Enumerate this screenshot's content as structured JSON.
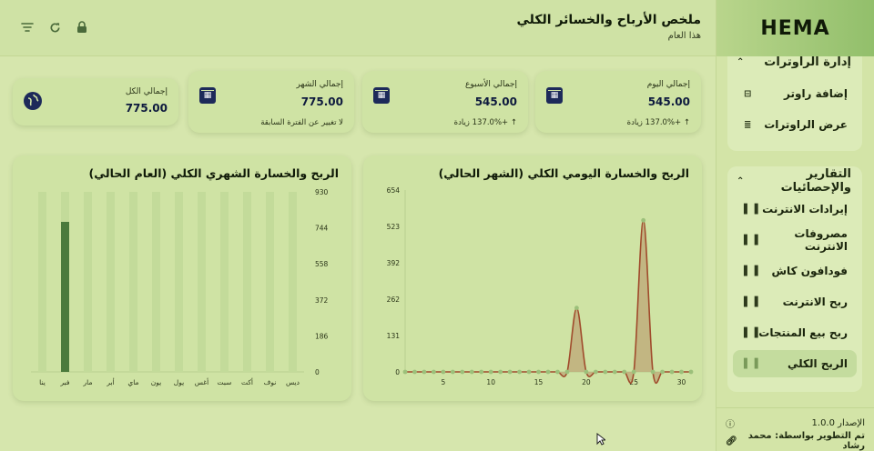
{
  "brand": "HEMA",
  "header": {
    "title": "ملخص الأرباح والخسائر الكلي",
    "subtitle": "هذا العام"
  },
  "stats": {
    "today": {
      "label": "إجمالي اليوم",
      "value": "545.00",
      "trend": "↑ +137.0% زيادة"
    },
    "week": {
      "label": "إجمالي الأسبوع",
      "value": "545.00",
      "trend": "↑ +137.0% زيادة"
    },
    "month": {
      "label": "إجمالي الشهر",
      "value": "775.00",
      "trend": "لا تغيير عن الفترة السابقة"
    },
    "total": {
      "label": "إجمالي الكل",
      "value": "775.00"
    }
  },
  "sidebar": {
    "routers_group": "إدارة الراوترات",
    "routers_items": [
      "إضافة راوتر",
      "عرض الراوترات"
    ],
    "reports_group": "التقارير والإحصائيات",
    "reports_items": [
      "إيرادات الانترنت",
      "مصروفات الانترنت",
      "فودافون كاش",
      "ربح الانترنت",
      "ربح بيع المنتجات",
      "الربح الكلي"
    ],
    "version": "الإصدار 1.0.0",
    "developer": "تم التطوير بواسطة: محمد رشاد"
  },
  "colors": {
    "accent": "#4a7a3c",
    "line": "#a04b2c",
    "area_fill": "#bfae7c",
    "bar_bg": "#c3db9a",
    "icon_navy": "#1d2a5a"
  },
  "chart_data": [
    {
      "type": "area",
      "title": "الربح والخسارة اليومي الكلي (الشهر الحالي)",
      "y_ticks": [
        0,
        131,
        262,
        392,
        523,
        654
      ],
      "x_ticks": [
        5,
        10,
        15,
        20,
        25,
        30
      ],
      "ylim": [
        0,
        654
      ],
      "xlim": [
        1,
        31
      ],
      "x": [
        1,
        2,
        3,
        4,
        5,
        6,
        7,
        8,
        9,
        10,
        11,
        12,
        13,
        14,
        15,
        16,
        17,
        18,
        19,
        20,
        21,
        22,
        23,
        24,
        25,
        26,
        27,
        28,
        29,
        30,
        31
      ],
      "values": [
        0,
        0,
        0,
        0,
        0,
        0,
        0,
        0,
        0,
        0,
        0,
        0,
        0,
        0,
        0,
        0,
        0,
        0,
        230,
        0,
        0,
        0,
        0,
        0,
        0,
        545,
        0,
        0,
        0,
        0,
        0
      ]
    },
    {
      "type": "bar",
      "title": "الربح والخسارة الشهري الكلي (العام الحالي)",
      "categories": [
        "ينا",
        "فبر",
        "مار",
        "أبر",
        "ماي",
        "يون",
        "يول",
        "أغس",
        "سبت",
        "أكت",
        "نوف",
        "ديس"
      ],
      "values": [
        0,
        775,
        0,
        0,
        0,
        0,
        0,
        0,
        0,
        0,
        0,
        0
      ],
      "y_ticks": [
        0,
        186,
        372,
        558,
        744,
        930
      ],
      "ylim": [
        0,
        930
      ]
    }
  ]
}
